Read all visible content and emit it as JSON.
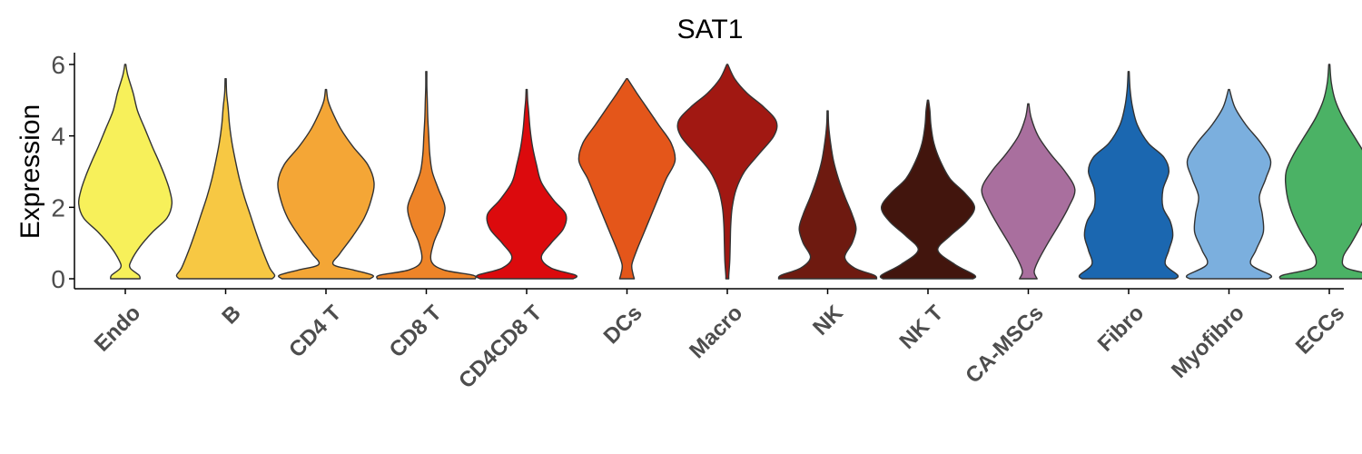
{
  "chart_data": {
    "type": "violin",
    "title": "SAT1",
    "xlabel": "",
    "ylabel": "Expression",
    "ylim": [
      -0.3,
      6.3
    ],
    "yticks": [
      0,
      2,
      4,
      6
    ],
    "grid": false,
    "legend": "none",
    "categories": [
      "Endo",
      "B",
      "CD4 T",
      "CD8 T",
      "CD4CD8 T",
      "DCs",
      "Macro",
      "NK",
      "NK T",
      "CA-MSCs",
      "Fibro",
      "Myofibro",
      "ECCs"
    ],
    "colors": [
      "#F7F05A",
      "#F7C843",
      "#F4A636",
      "#EE8428",
      "#DC0A0D",
      "#E4561A",
      "#A11812",
      "#6E1A10",
      "#42150D",
      "#A96F9E",
      "#1B67B0",
      "#7BAFDE",
      "#4BB265"
    ],
    "series": [
      {
        "max": 6.0,
        "density": [
          [
            0,
            0.3
          ],
          [
            0.1,
            0.28
          ],
          [
            0.3,
            0.1
          ],
          [
            0.5,
            0.12
          ],
          [
            0.9,
            0.3
          ],
          [
            1.3,
            0.55
          ],
          [
            1.7,
            0.85
          ],
          [
            2.1,
            0.95
          ],
          [
            2.5,
            0.9
          ],
          [
            2.9,
            0.8
          ],
          [
            3.3,
            0.68
          ],
          [
            3.7,
            0.55
          ],
          [
            4.2,
            0.4
          ],
          [
            4.7,
            0.25
          ],
          [
            5.2,
            0.16
          ],
          [
            5.7,
            0.05
          ],
          [
            6.0,
            0.0
          ]
        ]
      },
      {
        "max": 5.6,
        "density": [
          [
            0,
            0.95
          ],
          [
            0.1,
            1.0
          ],
          [
            0.3,
            0.9
          ],
          [
            0.8,
            0.75
          ],
          [
            1.3,
            0.62
          ],
          [
            1.8,
            0.5
          ],
          [
            2.3,
            0.38
          ],
          [
            2.8,
            0.28
          ],
          [
            3.3,
            0.2
          ],
          [
            3.8,
            0.13
          ],
          [
            4.3,
            0.08
          ],
          [
            4.8,
            0.05
          ],
          [
            5.2,
            0.02
          ],
          [
            5.6,
            0.0
          ]
        ]
      },
      {
        "max": 5.3,
        "density": [
          [
            0,
            0.9
          ],
          [
            0.1,
            0.95
          ],
          [
            0.25,
            0.55
          ],
          [
            0.4,
            0.15
          ],
          [
            0.7,
            0.28
          ],
          [
            1.2,
            0.55
          ],
          [
            1.7,
            0.78
          ],
          [
            2.2,
            0.92
          ],
          [
            2.7,
            0.98
          ],
          [
            3.2,
            0.85
          ],
          [
            3.7,
            0.55
          ],
          [
            4.2,
            0.3
          ],
          [
            4.7,
            0.12
          ],
          [
            5.0,
            0.04
          ],
          [
            5.3,
            0.0
          ]
        ]
      },
      {
        "max": 5.8,
        "density": [
          [
            0,
            1.0
          ],
          [
            0.1,
            0.95
          ],
          [
            0.25,
            0.35
          ],
          [
            0.5,
            0.1
          ],
          [
            1.0,
            0.15
          ],
          [
            1.5,
            0.3
          ],
          [
            2.0,
            0.38
          ],
          [
            2.5,
            0.25
          ],
          [
            3.0,
            0.12
          ],
          [
            3.5,
            0.07
          ],
          [
            4.0,
            0.05
          ],
          [
            4.5,
            0.03
          ],
          [
            5.0,
            0.02
          ],
          [
            5.4,
            0.01
          ],
          [
            5.8,
            0.0
          ]
        ]
      },
      {
        "max": 5.3,
        "density": [
          [
            0,
            0.95
          ],
          [
            0.1,
            1.0
          ],
          [
            0.3,
            0.5
          ],
          [
            0.6,
            0.3
          ],
          [
            1.0,
            0.5
          ],
          [
            1.4,
            0.75
          ],
          [
            1.8,
            0.8
          ],
          [
            2.2,
            0.55
          ],
          [
            2.7,
            0.3
          ],
          [
            3.2,
            0.2
          ],
          [
            3.7,
            0.12
          ],
          [
            4.2,
            0.07
          ],
          [
            4.7,
            0.04
          ],
          [
            5.0,
            0.02
          ],
          [
            5.3,
            0.0
          ]
        ]
      },
      {
        "max": 5.6,
        "density": [
          [
            0,
            0.15
          ],
          [
            0.15,
            0.12
          ],
          [
            0.4,
            0.1
          ],
          [
            0.8,
            0.2
          ],
          [
            1.3,
            0.35
          ],
          [
            1.8,
            0.5
          ],
          [
            2.3,
            0.65
          ],
          [
            2.8,
            0.8
          ],
          [
            3.3,
            0.98
          ],
          [
            3.8,
            0.9
          ],
          [
            4.3,
            0.65
          ],
          [
            4.8,
            0.4
          ],
          [
            5.2,
            0.2
          ],
          [
            5.6,
            0.0
          ]
        ]
      },
      {
        "max": 6.0,
        "density": [
          [
            0,
            0.03
          ],
          [
            0.1,
            0.03
          ],
          [
            0.5,
            0.05
          ],
          [
            1.0,
            0.06
          ],
          [
            1.5,
            0.07
          ],
          [
            2.0,
            0.1
          ],
          [
            2.5,
            0.18
          ],
          [
            3.0,
            0.35
          ],
          [
            3.5,
            0.65
          ],
          [
            4.0,
            0.95
          ],
          [
            4.4,
            1.0
          ],
          [
            4.8,
            0.75
          ],
          [
            5.2,
            0.4
          ],
          [
            5.6,
            0.15
          ],
          [
            6.0,
            0.0
          ]
        ]
      },
      {
        "max": 4.7,
        "density": [
          [
            0,
            1.0
          ],
          [
            0.1,
            0.95
          ],
          [
            0.3,
            0.55
          ],
          [
            0.6,
            0.35
          ],
          [
            1.0,
            0.5
          ],
          [
            1.4,
            0.58
          ],
          [
            1.8,
            0.5
          ],
          [
            2.3,
            0.35
          ],
          [
            2.8,
            0.22
          ],
          [
            3.3,
            0.12
          ],
          [
            3.8,
            0.06
          ],
          [
            4.3,
            0.02
          ],
          [
            4.7,
            0.0
          ]
        ]
      },
      {
        "max": 5.0,
        "density": [
          [
            0,
            0.92
          ],
          [
            0.1,
            0.95
          ],
          [
            0.4,
            0.55
          ],
          [
            0.8,
            0.2
          ],
          [
            1.2,
            0.45
          ],
          [
            1.6,
            0.78
          ],
          [
            2.0,
            0.95
          ],
          [
            2.4,
            0.75
          ],
          [
            2.8,
            0.45
          ],
          [
            3.3,
            0.25
          ],
          [
            3.8,
            0.12
          ],
          [
            4.3,
            0.06
          ],
          [
            4.7,
            0.04
          ],
          [
            5.0,
            0.0
          ]
        ]
      },
      {
        "max": 4.9,
        "density": [
          [
            0,
            0.18
          ],
          [
            0.2,
            0.12
          ],
          [
            0.5,
            0.2
          ],
          [
            1.0,
            0.4
          ],
          [
            1.5,
            0.62
          ],
          [
            2.0,
            0.82
          ],
          [
            2.5,
            0.95
          ],
          [
            3.0,
            0.75
          ],
          [
            3.5,
            0.45
          ],
          [
            4.0,
            0.2
          ],
          [
            4.5,
            0.06
          ],
          [
            4.9,
            0.0
          ]
        ]
      },
      {
        "max": 5.8,
        "density": [
          [
            0,
            0.95
          ],
          [
            0.1,
            1.0
          ],
          [
            0.4,
            0.75
          ],
          [
            0.8,
            0.82
          ],
          [
            1.2,
            0.9
          ],
          [
            1.6,
            0.85
          ],
          [
            2.0,
            0.7
          ],
          [
            2.5,
            0.7
          ],
          [
            3.0,
            0.82
          ],
          [
            3.4,
            0.72
          ],
          [
            3.8,
            0.4
          ],
          [
            4.3,
            0.18
          ],
          [
            4.8,
            0.08
          ],
          [
            5.3,
            0.03
          ],
          [
            5.8,
            0.0
          ]
        ]
      },
      {
        "max": 5.3,
        "density": [
          [
            0,
            0.8
          ],
          [
            0.1,
            0.85
          ],
          [
            0.4,
            0.45
          ],
          [
            0.8,
            0.55
          ],
          [
            1.3,
            0.7
          ],
          [
            1.8,
            0.68
          ],
          [
            2.3,
            0.62
          ],
          [
            2.8,
            0.75
          ],
          [
            3.3,
            0.85
          ],
          [
            3.8,
            0.65
          ],
          [
            4.3,
            0.35
          ],
          [
            4.8,
            0.12
          ],
          [
            5.3,
            0.0
          ]
        ]
      },
      {
        "max": 6.0,
        "density": [
          [
            0,
            1.0
          ],
          [
            0.1,
            0.95
          ],
          [
            0.3,
            0.35
          ],
          [
            0.6,
            0.28
          ],
          [
            1.0,
            0.45
          ],
          [
            1.5,
            0.65
          ],
          [
            2.0,
            0.8
          ],
          [
            2.5,
            0.88
          ],
          [
            3.0,
            0.88
          ],
          [
            3.5,
            0.72
          ],
          [
            4.0,
            0.5
          ],
          [
            4.5,
            0.28
          ],
          [
            5.0,
            0.12
          ],
          [
            5.5,
            0.04
          ],
          [
            6.0,
            0.0
          ]
        ]
      }
    ]
  }
}
